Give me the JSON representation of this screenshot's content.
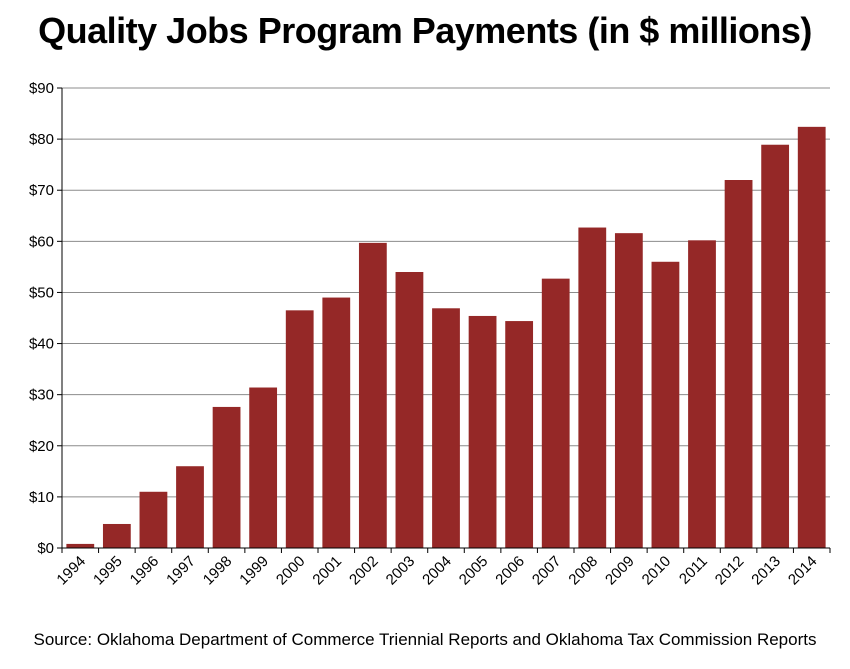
{
  "chart_data": {
    "type": "bar",
    "title": "Quality Jobs Program Payments (in $ millions)",
    "source": "Source: Oklahoma Department of Commerce Triennial Reports and Oklahoma Tax Commission Reports",
    "categories": [
      "1994",
      "1995",
      "1996",
      "1997",
      "1998",
      "1999",
      "2000",
      "2001",
      "2002",
      "2003",
      "2004",
      "2005",
      "2006",
      "2007",
      "2008",
      "2009",
      "2010",
      "2011",
      "2012",
      "2013",
      "2014"
    ],
    "values": [
      0.8,
      4.7,
      11.0,
      16.0,
      27.6,
      31.4,
      46.5,
      49.0,
      59.7,
      54.0,
      46.9,
      45.4,
      44.4,
      52.7,
      62.7,
      61.6,
      56.0,
      60.2,
      72.0,
      78.9,
      82.4
    ],
    "ylim": [
      0,
      90
    ],
    "yticks": [
      0,
      10,
      20,
      30,
      40,
      50,
      60,
      70,
      80,
      90
    ],
    "ytick_labels": [
      "$0",
      "$10",
      "$20",
      "$30",
      "$40",
      "$50",
      "$60",
      "$70",
      "$80",
      "$90"
    ],
    "grid": true,
    "bar_color": "#952827",
    "xlabel": "",
    "ylabel": ""
  }
}
